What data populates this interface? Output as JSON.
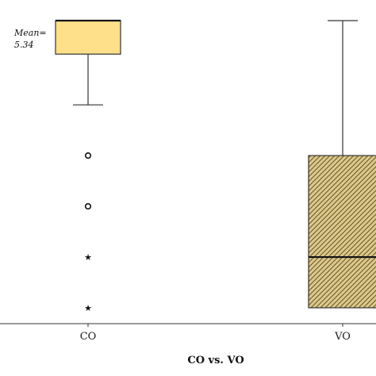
{
  "chart_data": {
    "type": "box",
    "title": "",
    "xlabel": "CO vs. VO",
    "ylabel": "",
    "categories": [
      "CO",
      "VO"
    ],
    "ylim": [
      0,
      7
    ],
    "grid": false,
    "legend": "none",
    "boxes": [
      {
        "category": "CO",
        "q1": 5.34,
        "median": 6,
        "q3": 6,
        "whisker_low": 4.34,
        "whisker_high": 6,
        "outliers": [
          3.34,
          2.34
        ],
        "extremes": [
          1.34,
          0.34
        ],
        "fill": "#FEE08B",
        "pattern": "none"
      },
      {
        "category": "VO",
        "q1": 0.34,
        "median": 1.34,
        "q3": 3.34,
        "whisker_low": 0.34,
        "whisker_high": 6,
        "outliers": [],
        "extremes": [],
        "fill": "#DCC98B",
        "pattern": "diagonal-hatch"
      }
    ],
    "annotations": [
      {
        "category": "CO",
        "line1": "Mean=",
        "line2": "5.34"
      }
    ]
  }
}
